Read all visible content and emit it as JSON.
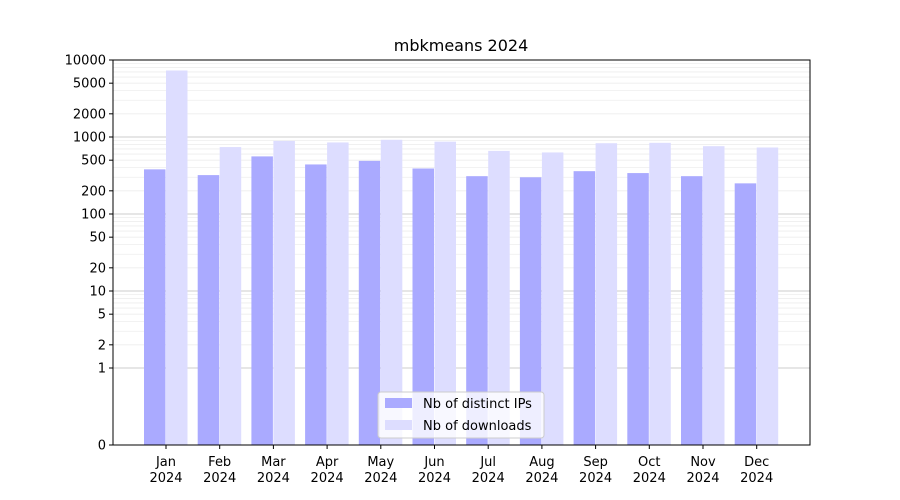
{
  "chart_data": {
    "type": "bar",
    "title": "mbkmeans 2024",
    "xlabel": "",
    "ylabel": "",
    "y_scale": "symlog",
    "ylim": [
      0,
      10000
    ],
    "y_ticks": [
      0,
      1,
      2,
      5,
      10,
      20,
      50,
      100,
      200,
      500,
      1000,
      2000,
      5000,
      10000
    ],
    "categories": [
      "Jan\n2024",
      "Feb\n2024",
      "Mar\n2024",
      "Apr\n2024",
      "May\n2024",
      "Jun\n2024",
      "Jul\n2024",
      "Aug\n2024",
      "Sep\n2024",
      "Oct\n2024",
      "Nov\n2024",
      "Dec\n2024"
    ],
    "series": [
      {
        "name": "Nb of distinct IPs",
        "color": "#aaaaff",
        "values": [
          380,
          320,
          560,
          440,
          490,
          390,
          310,
          300,
          360,
          340,
          310,
          250
        ]
      },
      {
        "name": "Nb of downloads",
        "color": "#ddddff",
        "values": [
          7300,
          740,
          890,
          850,
          920,
          870,
          660,
          630,
          830,
          840,
          760,
          730
        ]
      }
    ],
    "grid": true,
    "legend_position": "bottom-center"
  }
}
